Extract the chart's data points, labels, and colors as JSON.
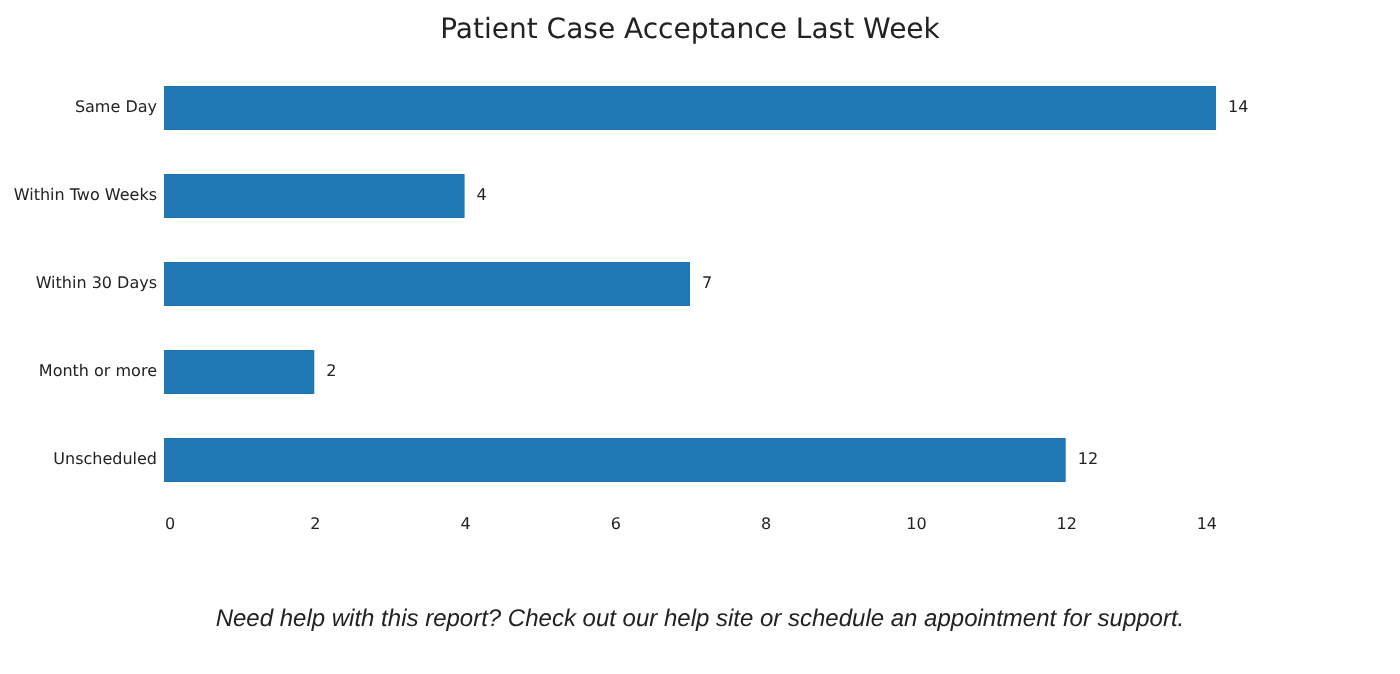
{
  "chart_data": {
    "type": "bar",
    "orientation": "horizontal",
    "title": "Patient Case Acceptance Last Week",
    "categories": [
      "Same Day",
      "Within Two Weeks",
      "Within 30 Days",
      "Month or more",
      "Unscheduled"
    ],
    "values": [
      14,
      4,
      7,
      2,
      12
    ],
    "color": "#1f77b4",
    "data_labels": true,
    "xlim": [
      0,
      14
    ],
    "xticks": [
      0,
      2,
      4,
      6,
      8,
      10,
      12,
      14
    ],
    "grid": false,
    "annotations": [
      "Need help with this report? Check out our help site or schedule an appointment for support."
    ]
  }
}
